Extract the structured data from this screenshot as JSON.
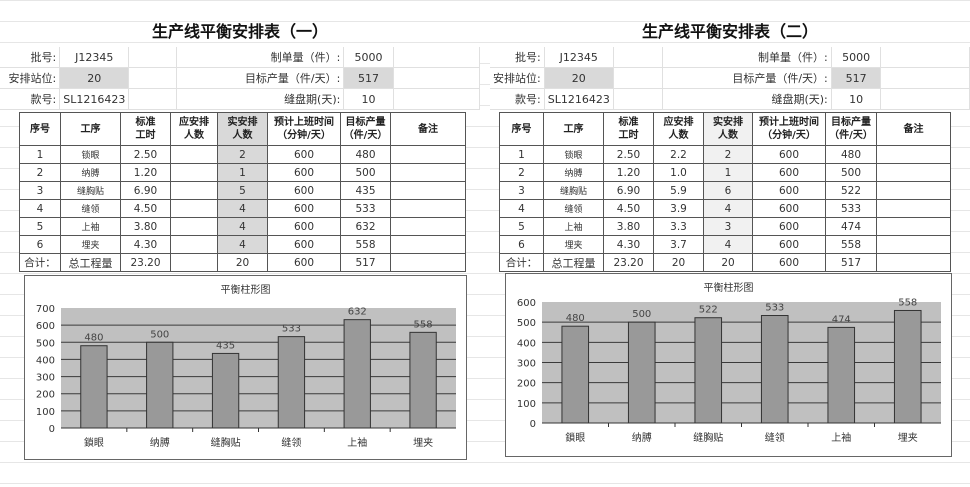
{
  "colors": {
    "plot_bg": "#c0c0c0",
    "bar": "#999999",
    "grid": "#3a3a3a",
    "highlight": "#d9d9d9"
  },
  "sheets": [
    {
      "title": "生产线平衡安排表（一）",
      "info": {
        "batch_label": "批号:",
        "batch": "J12345",
        "order_label": "制单量（件）:",
        "order": "5000",
        "stations_label": "安排站位:",
        "stations": "20",
        "target_label": "目标产量（件/天）:",
        "target": "517",
        "style_label": "款号:",
        "style": "SL1216423",
        "period_label": "缝盘期(天):",
        "period": "10"
      },
      "headers": [
        "序号",
        "工序",
        "标准\n工时",
        "应安排\n人数",
        "实安排\n人数",
        "预计上班时间\n（分钟/天）",
        "目标产量\n（件/天）",
        "备注"
      ],
      "rows": [
        [
          "1",
          "锁眼",
          "2.50",
          "",
          "2",
          "600",
          "480",
          ""
        ],
        [
          "2",
          "纳膊",
          "1.20",
          "",
          "1",
          "600",
          "500",
          ""
        ],
        [
          "3",
          "缝胸贴",
          "6.90",
          "",
          "5",
          "600",
          "435",
          ""
        ],
        [
          "4",
          "缝领",
          "4.50",
          "",
          "4",
          "600",
          "533",
          ""
        ],
        [
          "5",
          "上袖",
          "3.80",
          "",
          "4",
          "600",
          "632",
          ""
        ],
        [
          "6",
          "埋夹",
          "4.30",
          "",
          "4",
          "600",
          "558",
          ""
        ]
      ],
      "total": [
        "合计：",
        "总工程量",
        "23.20",
        "",
        "20",
        "600",
        "517",
        ""
      ]
    },
    {
      "title": "生产线平衡安排表（二）",
      "info": {
        "batch_label": "批号:",
        "batch": "J12345",
        "order_label": "制单量（件）:",
        "order": "5000",
        "stations_label": "安排站位:",
        "stations": "20",
        "target_label": "目标产量（件/天）:",
        "target": "517",
        "style_label": "款号:",
        "style": "SL1216423",
        "period_label": "缝盘期(天):",
        "period": "10"
      },
      "headers": [
        "序号",
        "工序",
        "标准\n工时",
        "应安排\n人数",
        "实安排\n人数",
        "预计上班时间\n（分钟/天）",
        "目标产量\n（件/天）",
        "备注"
      ],
      "rows": [
        [
          "1",
          "锁眼",
          "2.50",
          "2.2",
          "2",
          "600",
          "480",
          ""
        ],
        [
          "2",
          "纳膊",
          "1.20",
          "1.0",
          "1",
          "600",
          "500",
          ""
        ],
        [
          "3",
          "缝胸贴",
          "6.90",
          "5.9",
          "6",
          "600",
          "522",
          ""
        ],
        [
          "4",
          "缝领",
          "4.50",
          "3.9",
          "4",
          "600",
          "533",
          ""
        ],
        [
          "5",
          "上袖",
          "3.80",
          "3.3",
          "3",
          "600",
          "474",
          ""
        ],
        [
          "6",
          "埋夹",
          "4.30",
          "3.7",
          "4",
          "600",
          "558",
          ""
        ]
      ],
      "total": [
        "合计：",
        "总工程量",
        "23.20",
        "20",
        "20",
        "600",
        "517",
        ""
      ]
    }
  ],
  "chart_data": [
    {
      "type": "bar",
      "title": "平衡柱形图",
      "categories": [
        "鎖眼",
        "纳膊",
        "缝胸贴",
        "缝领",
        "上袖",
        "埋夹"
      ],
      "values": [
        480,
        500,
        435,
        533,
        632,
        558
      ],
      "ylim": [
        0,
        700
      ],
      "yticks": [
        0,
        100,
        200,
        300,
        400,
        500,
        600,
        700
      ],
      "grid": true,
      "data_labels": true
    },
    {
      "type": "bar",
      "title": "平衡柱形图",
      "categories": [
        "鎖眼",
        "纳膊",
        "缝胸贴",
        "缝领",
        "上袖",
        "埋夹"
      ],
      "values": [
        480,
        500,
        522,
        533,
        474,
        558
      ],
      "ylim": [
        0,
        600
      ],
      "yticks": [
        0,
        100,
        200,
        300,
        400,
        500,
        600
      ],
      "grid": true,
      "data_labels": true
    }
  ]
}
